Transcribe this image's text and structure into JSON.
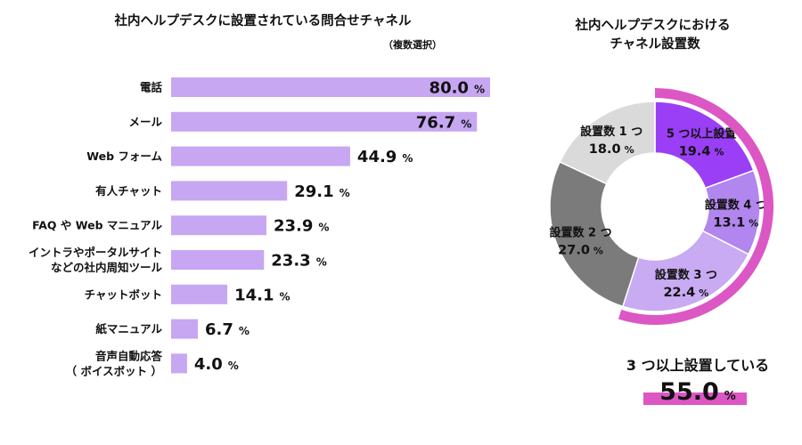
{
  "chart_data": [
    {
      "type": "bar",
      "orientation": "horizontal",
      "title": "社内ヘルプデスクに設置されている問合せチャネル",
      "subtitle": "（複数選択）",
      "unit": "%",
      "xlim": [
        0,
        80
      ],
      "grid": false,
      "categories": [
        [
          "電話"
        ],
        [
          "メール"
        ],
        [
          "Web フォーム"
        ],
        [
          "有人チャット"
        ],
        [
          "FAQ や Web マニュアル"
        ],
        [
          "イントラやポータルサイト",
          "などの社内周知ツール"
        ],
        [
          "チャットボット"
        ],
        [
          "紙マニュアル"
        ],
        [
          "音声自動応答",
          "（ ボイスボット ）"
        ]
      ],
      "values": [
        80.0,
        76.7,
        44.9,
        29.1,
        23.9,
        23.3,
        14.1,
        6.7,
        4.0
      ],
      "labels": [
        "80.0",
        "76.7",
        "44.9",
        "29.1",
        "23.9",
        "23.3",
        "14.1",
        "6.7",
        "4.0"
      ],
      "bar_color": "#c7a6f2"
    },
    {
      "type": "pie",
      "variant": "donut",
      "title": [
        "社内ヘルプデスクにおける",
        "チャネル設置数"
      ],
      "unit": "%",
      "slices": [
        {
          "name": "5 つ以上設置",
          "value": 19.4,
          "label": "19.4",
          "color": "#9a3ff6"
        },
        {
          "name": "設置数 4 つ",
          "value": 13.1,
          "label": "13.1",
          "color": "#b186ee"
        },
        {
          "name": "設置数 3 つ",
          "value": 22.4,
          "label": "22.4",
          "color": "#c8abf2"
        },
        {
          "name": "設置数 2 つ",
          "value": 27.0,
          "label": "27.0",
          "color": "#7b7b7b"
        },
        {
          "name": "設置数 1 つ",
          "value": 18.0,
          "label": "18.0",
          "color": "#dadada"
        }
      ],
      "highlight": {
        "label": "3 つ以上設置している",
        "value": 55.0,
        "value_text": "55.0",
        "color": "#dc56c4"
      }
    }
  ]
}
